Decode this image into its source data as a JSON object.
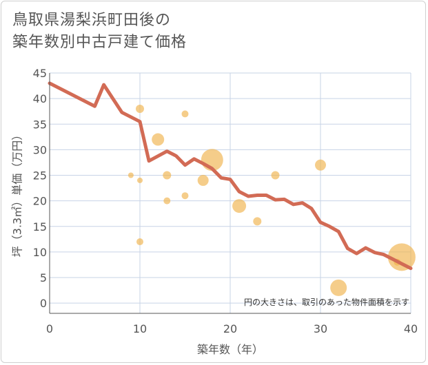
{
  "title_lines": [
    "鳥取県湯梨浜町田後の",
    "築年数別中古戸建て価格"
  ],
  "chart_data": {
    "type": "scatter",
    "title": "鳥取県湯梨浜町田後の築年数別中古戸建て価格",
    "xlabel": "築年数（年）",
    "ylabel": "坪（3.3㎡）単価（万円）",
    "xlim": [
      0,
      40
    ],
    "ylim": [
      -2,
      45
    ],
    "xticks": [
      0,
      10,
      20,
      30,
      40
    ],
    "yticks": [
      0,
      5,
      10,
      15,
      20,
      25,
      30,
      35,
      40,
      45
    ],
    "note": "円の大きさは、取引のあった物件面積を示す",
    "colors": {
      "line": "#d26b55",
      "bubble": "#f0b24c",
      "grid": "#c7d3e6",
      "axis": "#555555"
    },
    "line": {
      "name": "trend",
      "x": [
        0,
        5,
        6,
        8,
        10,
        11,
        13,
        14,
        15,
        16,
        17,
        18,
        19,
        20,
        21,
        22,
        23,
        24,
        25,
        26,
        27,
        28,
        29,
        30,
        31,
        32,
        33,
        34,
        35,
        36,
        37,
        38,
        39,
        40
      ],
      "y": [
        43,
        38.5,
        42.7,
        37.3,
        35.5,
        27.8,
        29.7,
        28.8,
        27,
        28.2,
        27.3,
        26.3,
        24.5,
        24.2,
        21.8,
        20.9,
        21.1,
        21.1,
        20.2,
        20.3,
        19.3,
        19.6,
        18.5,
        15.8,
        15,
        14,
        10.7,
        9.7,
        10.8,
        9.9,
        9.5,
        8.6,
        7.7,
        6.8
      ]
    },
    "bubbles": [
      {
        "x": 9,
        "y": 25,
        "size": 4
      },
      {
        "x": 10,
        "y": 38,
        "size": 6
      },
      {
        "x": 10,
        "y": 24,
        "size": 4
      },
      {
        "x": 10,
        "y": 12,
        "size": 5
      },
      {
        "x": 12,
        "y": 32,
        "size": 9
      },
      {
        "x": 13,
        "y": 25,
        "size": 6
      },
      {
        "x": 13,
        "y": 20,
        "size": 5
      },
      {
        "x": 15,
        "y": 37,
        "size": 5
      },
      {
        "x": 15,
        "y": 21,
        "size": 5
      },
      {
        "x": 17,
        "y": 24,
        "size": 8
      },
      {
        "x": 18,
        "y": 28,
        "size": 16
      },
      {
        "x": 21,
        "y": 19,
        "size": 10
      },
      {
        "x": 23,
        "y": 16,
        "size": 6
      },
      {
        "x": 25,
        "y": 25,
        "size": 6
      },
      {
        "x": 30,
        "y": 27,
        "size": 8
      },
      {
        "x": 32,
        "y": 3,
        "size": 12
      },
      {
        "x": 39,
        "y": 9,
        "size": 20
      },
      {
        "x": 38.5,
        "y": 8,
        "size": 5
      }
    ]
  }
}
